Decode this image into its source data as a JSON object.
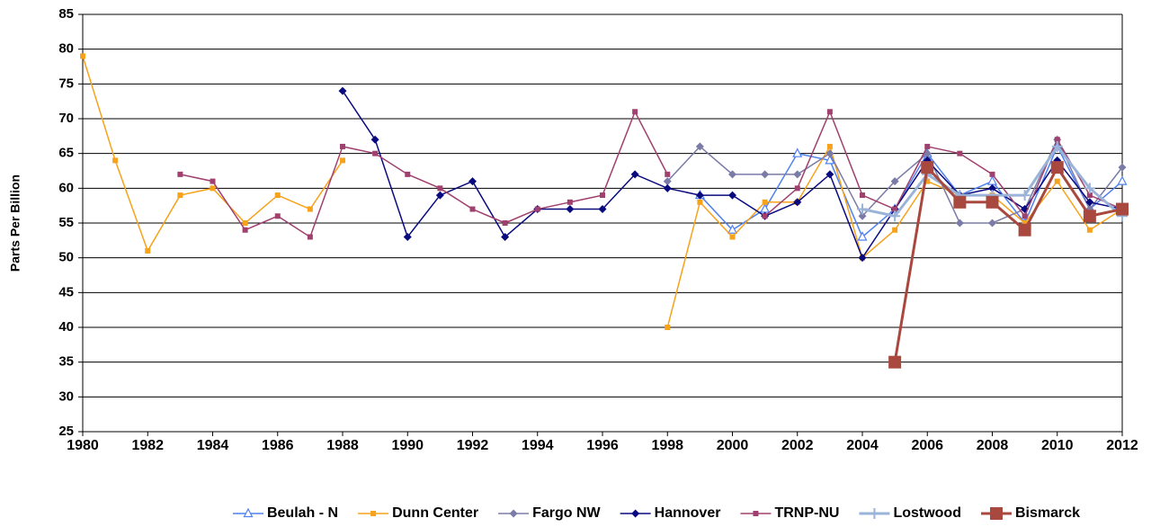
{
  "chart_data": {
    "type": "line",
    "y_label": "Parts Per Billion",
    "x": [
      1980,
      1981,
      1982,
      1983,
      1984,
      1985,
      1986,
      1987,
      1988,
      1989,
      1990,
      1991,
      1992,
      1993,
      1994,
      1995,
      1996,
      1997,
      1998,
      1999,
      2000,
      2001,
      2002,
      2003,
      2004,
      2005,
      2006,
      2007,
      2008,
      2009,
      2010,
      2011,
      2012
    ],
    "xlim": [
      1980,
      2012
    ],
    "xticks": [
      1980,
      1982,
      1984,
      1986,
      1988,
      1990,
      1992,
      1994,
      1996,
      1998,
      2000,
      2002,
      2004,
      2006,
      2008,
      2010,
      2012
    ],
    "ylim": [
      25,
      85
    ],
    "yticks": [
      25,
      30,
      35,
      40,
      45,
      50,
      55,
      60,
      65,
      70,
      75,
      80,
      85
    ],
    "grid": true,
    "legend": "bottom",
    "series": [
      {
        "name": "Beulah - N",
        "color": "#4f81f0",
        "marker": "triangle",
        "width": 1.5,
        "values": [
          null,
          null,
          null,
          null,
          null,
          null,
          null,
          null,
          null,
          null,
          null,
          null,
          null,
          null,
          null,
          null,
          null,
          null,
          null,
          59,
          54,
          57,
          65,
          64,
          53,
          57,
          65,
          59,
          61,
          55,
          66,
          57,
          61
        ]
      },
      {
        "name": "Dunn Center",
        "color": "#f7a21b",
        "marker": "square",
        "width": 1.5,
        "values": [
          79,
          64,
          51,
          59,
          60,
          55,
          59,
          57,
          64,
          null,
          null,
          null,
          null,
          null,
          null,
          null,
          null,
          null,
          40,
          58,
          53,
          58,
          58,
          66,
          50,
          54,
          61,
          59,
          59,
          55,
          61,
          54,
          57
        ]
      },
      {
        "name": "Fargo NW",
        "color": "#7b7ba8",
        "marker": "diamond",
        "width": 1.5,
        "values": [
          null,
          null,
          null,
          null,
          null,
          null,
          null,
          null,
          null,
          null,
          null,
          null,
          null,
          null,
          null,
          null,
          null,
          null,
          61,
          66,
          62,
          62,
          62,
          65,
          56,
          61,
          65,
          55,
          55,
          57,
          67,
          57,
          63
        ]
      },
      {
        "name": "Hannover",
        "color": "#0a0a80",
        "marker": "diamond",
        "width": 1.5,
        "values": [
          null,
          null,
          null,
          null,
          null,
          null,
          null,
          null,
          74,
          67,
          53,
          59,
          61,
          53,
          57,
          57,
          57,
          62,
          60,
          59,
          59,
          56,
          58,
          62,
          50,
          57,
          64,
          59,
          60,
          57,
          64,
          58,
          57
        ]
      },
      {
        "name": "TRNP-NU",
        "color": "#a0406e",
        "marker": "square",
        "width": 1.5,
        "values": [
          null,
          null,
          null,
          62,
          61,
          54,
          56,
          53,
          66,
          65,
          62,
          60,
          57,
          55,
          57,
          58,
          59,
          71,
          62,
          null,
          null,
          56,
          60,
          71,
          59,
          57,
          66,
          65,
          62,
          56,
          67,
          59,
          57
        ]
      },
      {
        "name": "Lostwood",
        "color": "#9ab3d8",
        "marker": "plus",
        "width": 3,
        "values": [
          null,
          null,
          null,
          null,
          null,
          null,
          null,
          null,
          null,
          null,
          null,
          null,
          null,
          null,
          null,
          null,
          null,
          null,
          null,
          null,
          null,
          null,
          null,
          null,
          57,
          56,
          62,
          59,
          59,
          59,
          66,
          60,
          56
        ]
      },
      {
        "name": "Bismarck",
        "color": "#a8483e",
        "marker": "bigsquare",
        "width": 3,
        "values": [
          null,
          null,
          null,
          null,
          null,
          null,
          null,
          null,
          null,
          null,
          null,
          null,
          null,
          null,
          null,
          null,
          null,
          null,
          null,
          null,
          null,
          null,
          null,
          null,
          null,
          35,
          63,
          58,
          58,
          54,
          63,
          56,
          57
        ]
      }
    ]
  }
}
